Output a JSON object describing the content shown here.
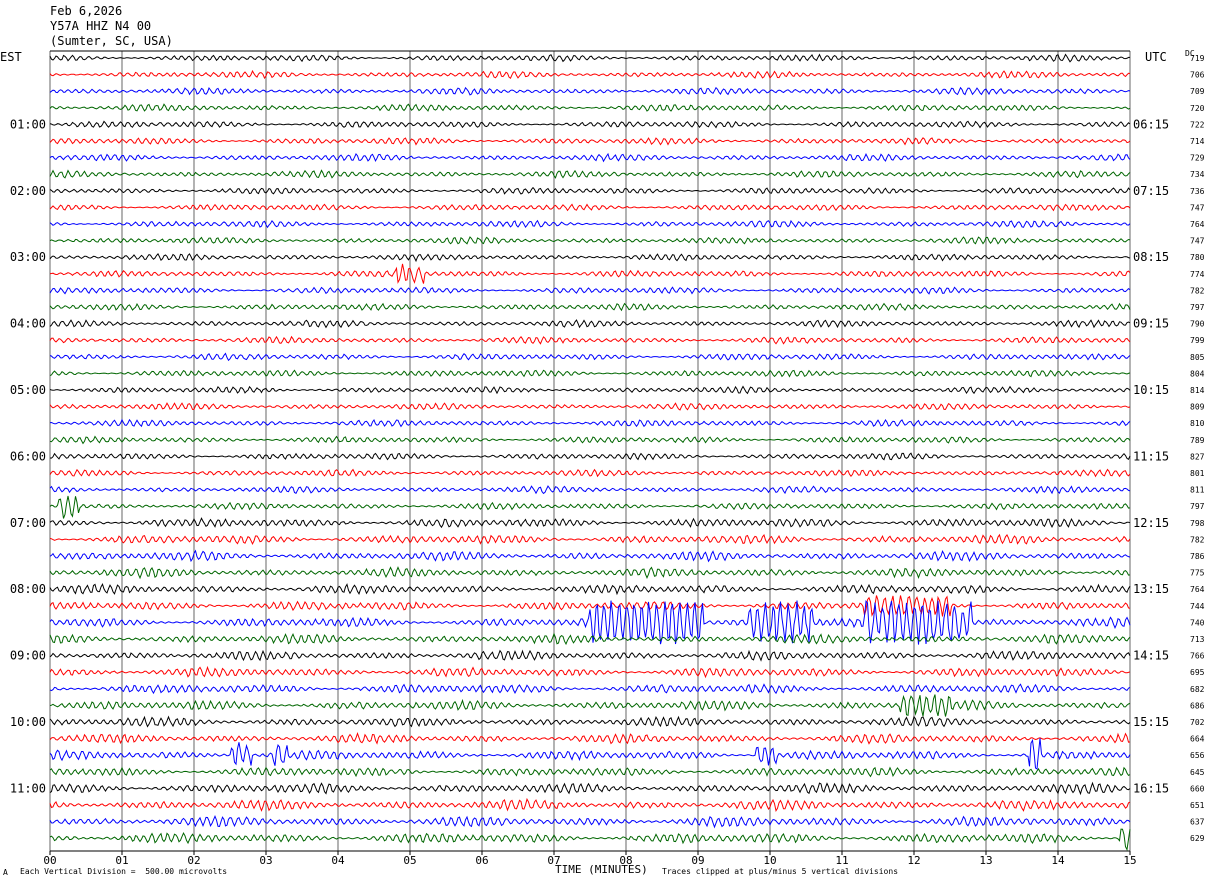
{
  "header": {
    "date": "Feb 6,2026",
    "station": "Y57A HHZ N4 00",
    "location": "(Sumter, SC, USA)"
  },
  "labels": {
    "left_tz": "EST",
    "right_tz": "UTC",
    "dc": "DC",
    "xlabel": "TIME (MINUTES)",
    "scale_note": "Each Vertical Division =  500.00 microvolts",
    "clip_note": "Traces clipped at plus/minus 5 vertical divisions",
    "corner_mark": "A"
  },
  "colors": {
    "cycle": [
      "#000000",
      "#ff0000",
      "#0000ff",
      "#006600"
    ],
    "grid": "#000000"
  },
  "chart_data": {
    "type": "line",
    "title": "Y57A HHZ N4 00",
    "xlabel": "TIME (MINUTES)",
    "xlim": [
      0,
      15
    ],
    "x_ticks": [
      "00",
      "01",
      "02",
      "03",
      "04",
      "05",
      "06",
      "07",
      "08",
      "09",
      "10",
      "11",
      "12",
      "13",
      "14",
      "15"
    ],
    "traces_per_hour": 4,
    "minutes_per_trace": 15,
    "est_hour_labels": [
      "01:00",
      "02:00",
      "03:00",
      "04:00",
      "05:00",
      "06:00",
      "07:00",
      "08:00",
      "09:00",
      "10:00",
      "11:00"
    ],
    "utc_hour_labels": [
      "06:15",
      "07:15",
      "08:15",
      "09:15",
      "10:15",
      "11:15",
      "12:15",
      "13:15",
      "14:15",
      "15:15",
      "16:15"
    ],
    "dc_offsets": [
      719,
      706,
      709,
      720,
      722,
      714,
      729,
      734,
      736,
      747,
      764,
      747,
      780,
      774,
      782,
      797,
      790,
      799,
      805,
      804,
      814,
      809,
      810,
      789,
      827,
      801,
      811,
      797,
      798,
      782,
      786,
      775,
      764,
      744,
      740,
      713,
      766,
      695,
      682,
      686,
      702,
      664,
      656,
      645,
      660,
      651,
      637,
      629
    ],
    "units": "microvolts",
    "vertical_division": 500.0,
    "clip_divisions": 5,
    "events": [
      {
        "trace": 13,
        "start_min": 4.8,
        "end_min": 5.2,
        "amp": 8
      },
      {
        "trace": 27,
        "start_min": 0.1,
        "end_min": 0.4,
        "amp": 10
      },
      {
        "trace": 34,
        "start_min": 7.5,
        "end_min": 9.1,
        "amp": 18
      },
      {
        "trace": 34,
        "start_min": 9.7,
        "end_min": 10.6,
        "amp": 18
      },
      {
        "trace": 34,
        "start_min": 11.3,
        "end_min": 12.8,
        "amp": 18
      },
      {
        "trace": 33,
        "start_min": 11.3,
        "end_min": 12.5,
        "amp": 9
      },
      {
        "trace": 39,
        "start_min": 11.8,
        "end_min": 12.5,
        "amp": 10
      },
      {
        "trace": 42,
        "start_min": 2.5,
        "end_min": 2.8,
        "amp": 10
      },
      {
        "trace": 42,
        "start_min": 3.1,
        "end_min": 3.3,
        "amp": 10
      },
      {
        "trace": 42,
        "start_min": 9.8,
        "end_min": 10.1,
        "amp": 8
      },
      {
        "trace": 42,
        "start_min": 13.6,
        "end_min": 13.75,
        "amp": 16
      },
      {
        "trace": 47,
        "start_min": 14.85,
        "end_min": 15.0,
        "amp": 12
      }
    ]
  }
}
